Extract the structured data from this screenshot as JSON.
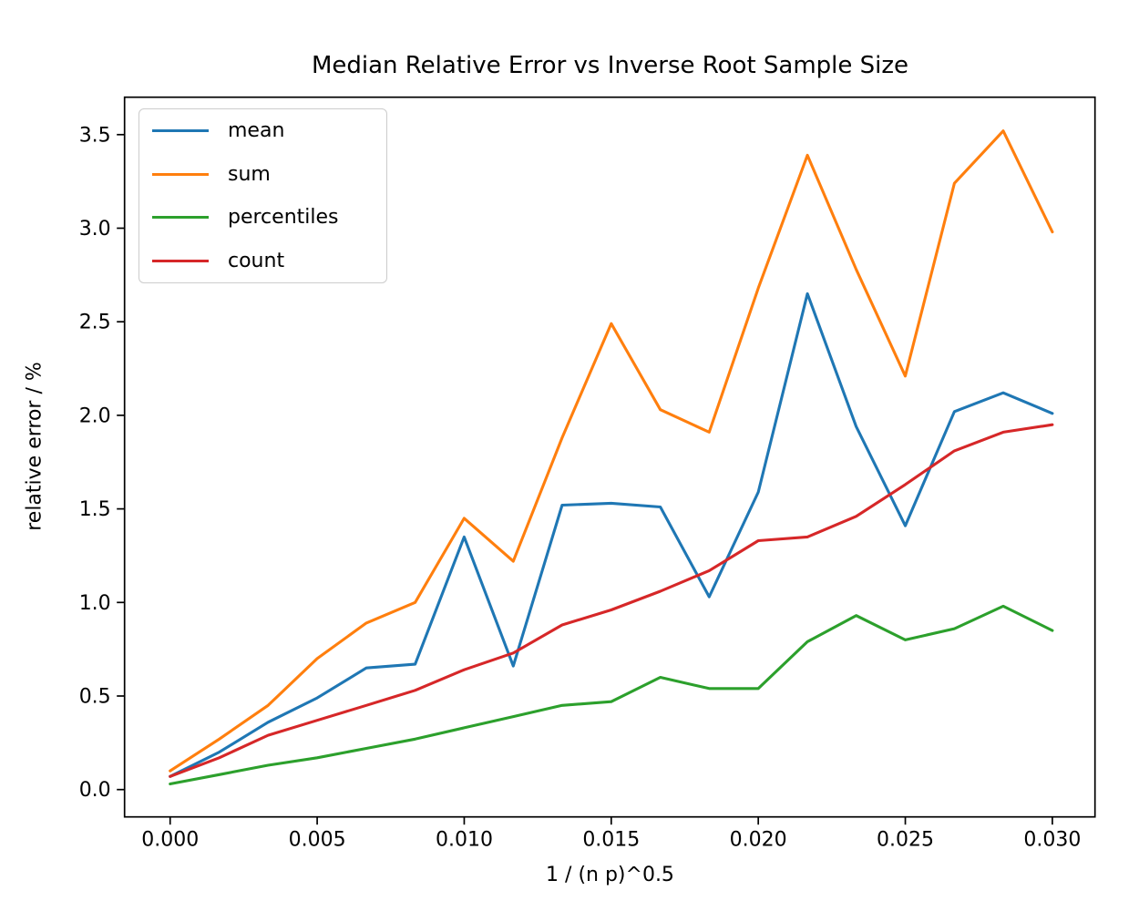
{
  "chart_data": {
    "type": "line",
    "title": "Median Relative Error vs Inverse Root Sample Size",
    "xlabel": "1 / (n p)^0.5",
    "ylabel": "relative error / %",
    "grid": false,
    "legend_position": "upper left",
    "xlim": [
      -0.00155,
      0.03145
    ],
    "ylim": [
      -0.146,
      3.7
    ],
    "x_ticks": [
      {
        "v": 0.0,
        "label": "0.000"
      },
      {
        "v": 0.005,
        "label": "0.005"
      },
      {
        "v": 0.01,
        "label": "0.010"
      },
      {
        "v": 0.015,
        "label": "0.015"
      },
      {
        "v": 0.02,
        "label": "0.020"
      },
      {
        "v": 0.025,
        "label": "0.025"
      },
      {
        "v": 0.03,
        "label": "0.030"
      }
    ],
    "y_ticks": [
      {
        "v": 0.0,
        "label": "0.0"
      },
      {
        "v": 0.5,
        "label": "0.5"
      },
      {
        "v": 1.0,
        "label": "1.0"
      },
      {
        "v": 1.5,
        "label": "1.5"
      },
      {
        "v": 2.0,
        "label": "2.0"
      },
      {
        "v": 2.5,
        "label": "2.5"
      },
      {
        "v": 3.0,
        "label": "3.0"
      },
      {
        "v": 3.5,
        "label": "3.5"
      }
    ],
    "x": [
      0,
      0.00167,
      0.00333,
      0.005,
      0.00667,
      0.00833,
      0.01,
      0.01167,
      0.01333,
      0.015,
      0.01667,
      0.01833,
      0.02,
      0.02167,
      0.02333,
      0.025,
      0.02667,
      0.02833,
      0.03
    ],
    "series": [
      {
        "name": "mean",
        "color": "#1f77b4",
        "values": [
          0.07,
          0.2,
          0.36,
          0.49,
          0.65,
          0.67,
          1.35,
          0.66,
          1.52,
          1.53,
          1.51,
          1.03,
          1.59,
          2.65,
          1.94,
          1.41,
          2.02,
          2.12,
          2.01
        ]
      },
      {
        "name": "sum",
        "color": "#ff7f0e",
        "values": [
          0.1,
          0.27,
          0.45,
          0.7,
          0.89,
          1.0,
          1.45,
          1.22,
          1.88,
          2.49,
          2.03,
          1.91,
          2.68,
          3.39,
          2.78,
          2.21,
          3.24,
          3.52,
          2.98
        ]
      },
      {
        "name": "percentiles",
        "color": "#2ca02c",
        "values": [
          0.03,
          0.08,
          0.13,
          0.17,
          0.22,
          0.27,
          0.33,
          0.39,
          0.45,
          0.47,
          0.6,
          0.54,
          0.54,
          0.79,
          0.93,
          0.8,
          0.86,
          0.98,
          0.85
        ]
      },
      {
        "name": "count",
        "color": "#d62728",
        "values": [
          0.07,
          0.17,
          0.29,
          0.37,
          0.45,
          0.53,
          0.64,
          0.73,
          0.88,
          0.96,
          1.06,
          1.17,
          1.33,
          1.35,
          1.46,
          1.63,
          1.81,
          1.91,
          1.95
        ]
      }
    ],
    "axis_color": "#000000",
    "line_width": 3.1
  }
}
